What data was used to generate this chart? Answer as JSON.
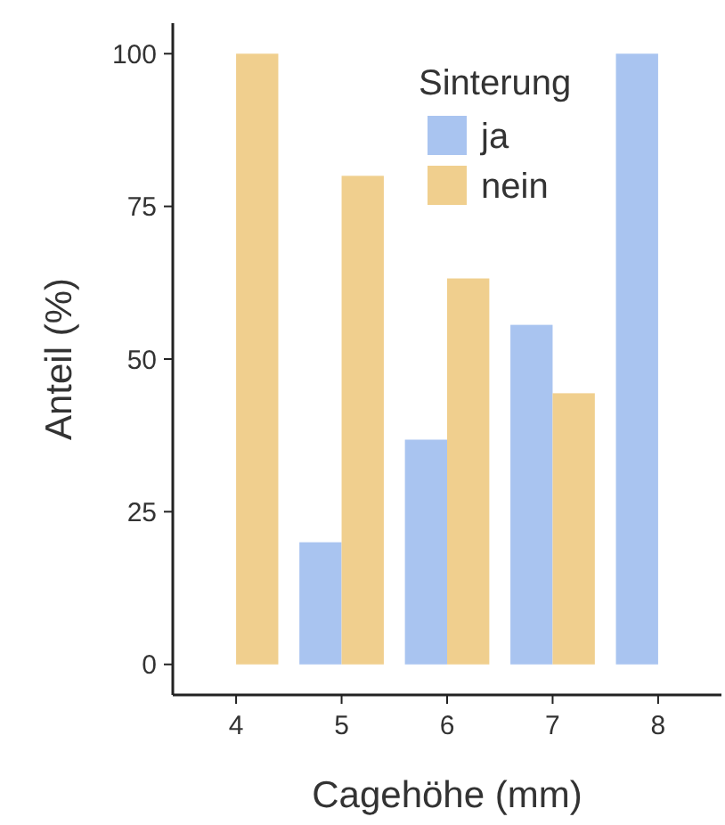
{
  "chart_data": {
    "type": "bar",
    "xlabel": "Cagehöhe (mm)",
    "ylabel": "Anteil (%)",
    "legend_title": "Sinterung",
    "legend": "top right",
    "categories": [
      "4",
      "5",
      "6",
      "7",
      "8"
    ],
    "series": [
      {
        "name": "ja",
        "color": "#a9c4f0",
        "values": [
          0,
          20,
          36.8,
          55.6,
          100
        ]
      },
      {
        "name": "nein",
        "color": "#f0cf8e",
        "values": [
          100,
          80,
          63.2,
          44.4,
          0
        ]
      }
    ],
    "ylim": [
      -5,
      105
    ],
    "yticks": [
      0,
      25,
      50,
      75,
      100
    ],
    "grid": false
  }
}
